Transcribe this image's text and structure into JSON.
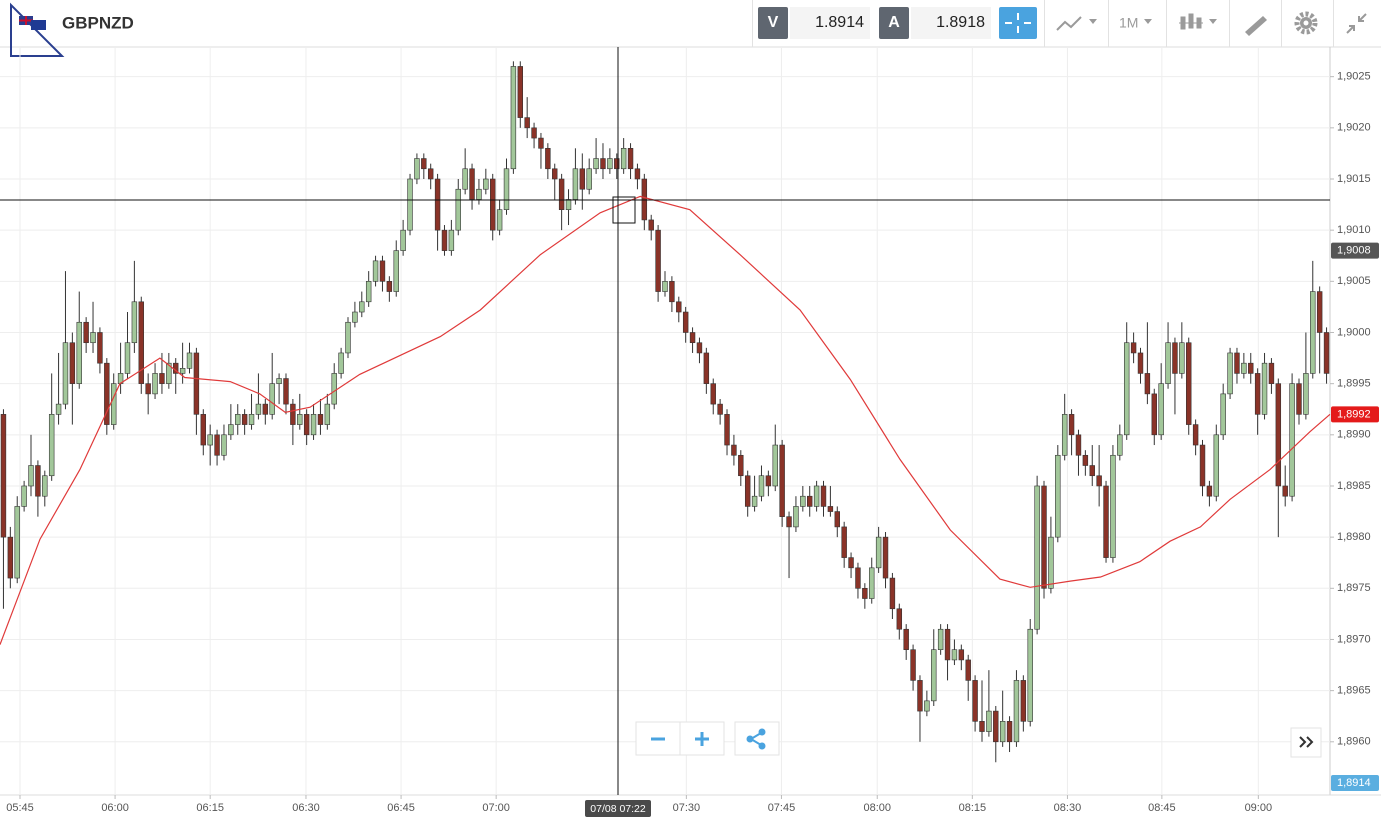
{
  "header": {
    "symbol": "GBPNZD",
    "sell_label": "V",
    "sell_price": "1.8914",
    "buy_label": "A",
    "buy_price": "1.8918",
    "timeframe": "1M",
    "crosshair_label": "07/08 07:22"
  },
  "chart_data": {
    "type": "candlestick",
    "up_color": "#a2c79a",
    "down_color": "#8a3328",
    "outline_color": "#333333",
    "xlim": [
      -0.5,
      192.5
    ],
    "ylim": [
      1.89548,
      1.90279
    ],
    "xticks": [
      {
        "value": 2.4,
        "label": "05:45"
      },
      {
        "value": 16.2,
        "label": "06:00"
      },
      {
        "value": 30.0,
        "label": "06:15"
      },
      {
        "value": 43.9,
        "label": "06:30"
      },
      {
        "value": 57.7,
        "label": "06:45"
      },
      {
        "value": 71.5,
        "label": "07:00"
      },
      {
        "value": 99.1,
        "label": "07:30"
      },
      {
        "value": 112.9,
        "label": "07:45"
      },
      {
        "value": 126.8,
        "label": "08:00"
      },
      {
        "value": 140.6,
        "label": "08:15"
      },
      {
        "value": 154.4,
        "label": "08:30"
      },
      {
        "value": 168.1,
        "label": "08:45"
      },
      {
        "value": 182.1,
        "label": "09:00"
      }
    ],
    "yticks": [
      {
        "value": 1.9025,
        "label": "1,9025"
      },
      {
        "value": 1.902,
        "label": "1,9020"
      },
      {
        "value": 1.9015,
        "label": "1,9015"
      },
      {
        "value": 1.901,
        "label": "1,9010"
      },
      {
        "value": 1.9005,
        "label": "1,9005"
      },
      {
        "value": 1.9,
        "label": "1,9000"
      },
      {
        "value": 1.8995,
        "label": "1,8995"
      },
      {
        "value": 1.899,
        "label": "1,8990"
      },
      {
        "value": 1.8985,
        "label": "1,8985"
      },
      {
        "value": 1.898,
        "label": "1,8980"
      },
      {
        "value": 1.8975,
        "label": "1,8975"
      },
      {
        "value": 1.897,
        "label": "1,8970"
      },
      {
        "value": 1.8965,
        "label": "1,8965"
      },
      {
        "value": 1.896,
        "label": "1,8960"
      }
    ],
    "grid": true,
    "price_markers": [
      {
        "value": 1.9008,
        "label": "1,9008",
        "color": "#555555"
      },
      {
        "value": 1.8992,
        "label": "1,8992",
        "color": "#e41a1a"
      },
      {
        "value": 1.8914,
        "label": "1,8914",
        "color": "#5aaee0"
      }
    ],
    "moving_average": {
      "color": "#e03a3a",
      "x": [
        -0.5,
        5.3,
        11.1,
        16.9,
        22.7,
        26.3,
        32.9,
        37.2,
        40.9,
        44.5,
        51.7,
        63.4,
        69.2,
        77.9,
        86.6,
        92.4,
        99.6,
        106.9,
        115.6,
        122.9,
        130.1,
        137.4,
        144.6,
        149,
        154.8,
        159.2,
        164.9,
        169.3,
        173.7,
        178,
        183.8,
        189.6,
        192.5
      ],
      "values": [
        1.89695,
        1.89798,
        1.89866,
        1.8995,
        1.89975,
        1.89956,
        1.89952,
        1.8994,
        1.89922,
        1.89927,
        1.89959,
        1.89996,
        1.90022,
        1.90076,
        1.90117,
        1.90133,
        1.9012,
        1.90076,
        1.90022,
        1.89954,
        1.89876,
        1.89807,
        1.89759,
        1.89751,
        1.89757,
        1.89761,
        1.89776,
        1.89796,
        1.8981,
        1.89837,
        1.89866,
        1.89903,
        1.8992
      ]
    },
    "candles": [
      [
        1.8992,
        1.89925,
        1.8973,
        1.898
      ],
      [
        1.898,
        1.8981,
        1.8975,
        1.8976
      ],
      [
        1.8976,
        1.8984,
        1.89755,
        1.8983
      ],
      [
        1.8983,
        1.89855,
        1.89825,
        1.8985
      ],
      [
        1.8985,
        1.899,
        1.8984,
        1.8987
      ],
      [
        1.8987,
        1.89875,
        1.8982,
        1.8984
      ],
      [
        1.8984,
        1.89865,
        1.8983,
        1.8986
      ],
      [
        1.8986,
        1.8996,
        1.89855,
        1.8992
      ],
      [
        1.8992,
        1.8998,
        1.8991,
        1.8993
      ],
      [
        1.8993,
        1.9006,
        1.89925,
        1.8999
      ],
      [
        1.8999,
        1.9,
        1.8991,
        1.8995
      ],
      [
        1.8995,
        1.9004,
        1.89945,
        1.9001
      ],
      [
        1.9001,
        1.90015,
        1.8998,
        1.8999
      ],
      [
        1.8999,
        1.9003,
        1.8998,
        1.9
      ],
      [
        1.9,
        1.90005,
        1.8996,
        1.8997
      ],
      [
        1.8997,
        1.89975,
        1.899,
        1.8991
      ],
      [
        1.8991,
        1.8996,
        1.89905,
        1.8995
      ],
      [
        1.8995,
        1.8999,
        1.8994,
        1.8996
      ],
      [
        1.8996,
        1.9002,
        1.89955,
        1.8999
      ],
      [
        1.8999,
        1.9007,
        1.8998,
        1.9003
      ],
      [
        1.9003,
        1.90035,
        1.8994,
        1.8995
      ],
      [
        1.8995,
        1.8996,
        1.8992,
        1.8994
      ],
      [
        1.8994,
        1.8997,
        1.89935,
        1.8996
      ],
      [
        1.8996,
        1.8998,
        1.8994,
        1.8995
      ],
      [
        1.8995,
        1.8998,
        1.89945,
        1.8997
      ],
      [
        1.8997,
        1.89975,
        1.8994,
        1.8996
      ],
      [
        1.8996,
        1.8999,
        1.8995,
        1.89965
      ],
      [
        1.89965,
        1.8999,
        1.8996,
        1.8998
      ],
      [
        1.8998,
        1.89985,
        1.899,
        1.8992
      ],
      [
        1.8992,
        1.89925,
        1.8988,
        1.8989
      ],
      [
        1.8989,
        1.8991,
        1.8987,
        1.899
      ],
      [
        1.899,
        1.89905,
        1.8987,
        1.8988
      ],
      [
        1.8988,
        1.8991,
        1.89875,
        1.899
      ],
      [
        1.899,
        1.8993,
        1.89895,
        1.8991
      ],
      [
        1.8991,
        1.8993,
        1.899,
        1.8992
      ],
      [
        1.8992,
        1.89925,
        1.899,
        1.8991
      ],
      [
        1.8991,
        1.8994,
        1.89905,
        1.8992
      ],
      [
        1.8992,
        1.8996,
        1.89915,
        1.8993
      ],
      [
        1.8993,
        1.89935,
        1.8991,
        1.8992
      ],
      [
        1.8992,
        1.8998,
        1.89915,
        1.8995
      ],
      [
        1.8995,
        1.8996,
        1.8993,
        1.89955
      ],
      [
        1.89955,
        1.8996,
        1.8992,
        1.8993
      ],
      [
        1.8993,
        1.89935,
        1.8989,
        1.8991
      ],
      [
        1.8991,
        1.8994,
        1.89905,
        1.8992
      ],
      [
        1.8992,
        1.89925,
        1.8989,
        1.899
      ],
      [
        1.899,
        1.8993,
        1.89895,
        1.8992
      ],
      [
        1.8992,
        1.89935,
        1.899,
        1.8991
      ],
      [
        1.8991,
        1.8994,
        1.89905,
        1.8993
      ],
      [
        1.8993,
        1.8997,
        1.89925,
        1.8996
      ],
      [
        1.8996,
        1.89985,
        1.89955,
        1.8998
      ],
      [
        1.8998,
        1.90015,
        1.89975,
        1.9001
      ],
      [
        1.9001,
        1.9003,
        1.90005,
        1.9002
      ],
      [
        1.9002,
        1.9004,
        1.90015,
        1.9003
      ],
      [
        1.9003,
        1.9006,
        1.90025,
        1.9005
      ],
      [
        1.9005,
        1.90075,
        1.90045,
        1.9007
      ],
      [
        1.9007,
        1.90075,
        1.9004,
        1.9005
      ],
      [
        1.9005,
        1.90055,
        1.9003,
        1.9004
      ],
      [
        1.9004,
        1.9009,
        1.90035,
        1.9008
      ],
      [
        1.9008,
        1.9011,
        1.90075,
        1.901
      ],
      [
        1.901,
        1.90155,
        1.90095,
        1.9015
      ],
      [
        1.9015,
        1.90175,
        1.90145,
        1.9017
      ],
      [
        1.9017,
        1.90175,
        1.9015,
        1.9016
      ],
      [
        1.9016,
        1.90165,
        1.9014,
        1.9015
      ],
      [
        1.9015,
        1.90155,
        1.9008,
        1.901
      ],
      [
        1.901,
        1.90105,
        1.90075,
        1.9008
      ],
      [
        1.9008,
        1.9011,
        1.90075,
        1.901
      ],
      [
        1.901,
        1.9015,
        1.90095,
        1.9014
      ],
      [
        1.9014,
        1.9018,
        1.90135,
        1.9016
      ],
      [
        1.9016,
        1.90165,
        1.9012,
        1.9013
      ],
      [
        1.9013,
        1.9015,
        1.90125,
        1.9014
      ],
      [
        1.9014,
        1.9016,
        1.90135,
        1.9015
      ],
      [
        1.9015,
        1.90155,
        1.9009,
        1.901
      ],
      [
        1.901,
        1.9013,
        1.90095,
        1.9012
      ],
      [
        1.9012,
        1.9017,
        1.90115,
        1.9016
      ],
      [
        1.9016,
        1.90265,
        1.90155,
        1.9026
      ],
      [
        1.9026,
        1.90265,
        1.902,
        1.9021
      ],
      [
        1.9021,
        1.9023,
        1.9019,
        1.902
      ],
      [
        1.902,
        1.90205,
        1.9018,
        1.9019
      ],
      [
        1.9019,
        1.90195,
        1.9016,
        1.9018
      ],
      [
        1.9018,
        1.90185,
        1.9015,
        1.9016
      ],
      [
        1.9016,
        1.90165,
        1.9013,
        1.9015
      ],
      [
        1.9015,
        1.90155,
        1.901,
        1.9012
      ],
      [
        1.9012,
        1.9014,
        1.90105,
        1.9013
      ],
      [
        1.9013,
        1.9018,
        1.90125,
        1.9016
      ],
      [
        1.9016,
        1.90175,
        1.9012,
        1.9014
      ],
      [
        1.9014,
        1.9017,
        1.90135,
        1.9016
      ],
      [
        1.9016,
        1.9019,
        1.90155,
        1.9017
      ],
      [
        1.9017,
        1.90185,
        1.9015,
        1.9016
      ],
      [
        1.9016,
        1.9018,
        1.90155,
        1.9017
      ],
      [
        1.9017,
        1.90175,
        1.9015,
        1.9016
      ],
      [
        1.9016,
        1.9019,
        1.90155,
        1.9018
      ],
      [
        1.9018,
        1.90185,
        1.9015,
        1.9016
      ],
      [
        1.9016,
        1.90165,
        1.9014,
        1.9015
      ],
      [
        1.9015,
        1.90155,
        1.901,
        1.9011
      ],
      [
        1.9011,
        1.90115,
        1.9009,
        1.901
      ],
      [
        1.901,
        1.90105,
        1.9003,
        1.9004
      ],
      [
        1.9004,
        1.9006,
        1.90035,
        1.9005
      ],
      [
        1.9005,
        1.90055,
        1.9002,
        1.9003
      ],
      [
        1.9003,
        1.90035,
        1.9001,
        1.9002
      ],
      [
        1.9002,
        1.90025,
        1.8999,
        1.9
      ],
      [
        1.9,
        1.90005,
        1.8998,
        1.8999
      ],
      [
        1.8999,
        1.89995,
        1.8997,
        1.8998
      ],
      [
        1.8998,
        1.89985,
        1.8994,
        1.8995
      ],
      [
        1.8995,
        1.89955,
        1.8992,
        1.8993
      ],
      [
        1.8993,
        1.89935,
        1.8991,
        1.8992
      ],
      [
        1.8992,
        1.89925,
        1.8988,
        1.8989
      ],
      [
        1.8989,
        1.899,
        1.8987,
        1.8988
      ],
      [
        1.8988,
        1.89885,
        1.8985,
        1.8986
      ],
      [
        1.8986,
        1.89865,
        1.8982,
        1.8983
      ],
      [
        1.8983,
        1.8986,
        1.89825,
        1.8984
      ],
      [
        1.8984,
        1.8987,
        1.89835,
        1.8986
      ],
      [
        1.8986,
        1.89865,
        1.8984,
        1.8985
      ],
      [
        1.8985,
        1.8991,
        1.89845,
        1.8989
      ],
      [
        1.8989,
        1.89895,
        1.8981,
        1.8982
      ],
      [
        1.8982,
        1.89825,
        1.8976,
        1.8981
      ],
      [
        1.8981,
        1.8984,
        1.89805,
        1.8983
      ],
      [
        1.8983,
        1.8985,
        1.89825,
        1.8984
      ],
      [
        1.8984,
        1.8985,
        1.8982,
        1.8983
      ],
      [
        1.8983,
        1.89855,
        1.89825,
        1.8985
      ],
      [
        1.8985,
        1.89855,
        1.8982,
        1.8983
      ],
      [
        1.8983,
        1.8985,
        1.8982,
        1.89825
      ],
      [
        1.89825,
        1.8983,
        1.898,
        1.8981
      ],
      [
        1.8981,
        1.89815,
        1.8977,
        1.8978
      ],
      [
        1.8978,
        1.89785,
        1.8976,
        1.8977
      ],
      [
        1.8977,
        1.89775,
        1.8974,
        1.8975
      ],
      [
        1.8975,
        1.89755,
        1.8973,
        1.8974
      ],
      [
        1.8974,
        1.8978,
        1.89735,
        1.8977
      ],
      [
        1.8977,
        1.8981,
        1.89765,
        1.898
      ],
      [
        1.898,
        1.89805,
        1.8975,
        1.8976
      ],
      [
        1.8976,
        1.89765,
        1.8972,
        1.8973
      ],
      [
        1.8973,
        1.89735,
        1.897,
        1.8971
      ],
      [
        1.8971,
        1.89715,
        1.8968,
        1.8969
      ],
      [
        1.8969,
        1.89695,
        1.8965,
        1.8966
      ],
      [
        1.8966,
        1.89665,
        1.896,
        1.8963
      ],
      [
        1.8963,
        1.8965,
        1.89625,
        1.8964
      ],
      [
        1.8964,
        1.8971,
        1.89635,
        1.8969
      ],
      [
        1.8969,
        1.89715,
        1.89685,
        1.8971
      ],
      [
        1.8971,
        1.89715,
        1.8966,
        1.8968
      ],
      [
        1.8968,
        1.897,
        1.89675,
        1.8969
      ],
      [
        1.8969,
        1.89695,
        1.8967,
        1.8968
      ],
      [
        1.8968,
        1.89685,
        1.8964,
        1.8966
      ],
      [
        1.8966,
        1.89665,
        1.8961,
        1.8962
      ],
      [
        1.8962,
        1.8966,
        1.896,
        1.8961
      ],
      [
        1.8961,
        1.8967,
        1.89605,
        1.8963
      ],
      [
        1.8963,
        1.89635,
        1.8958,
        1.896
      ],
      [
        1.896,
        1.8965,
        1.89595,
        1.8962
      ],
      [
        1.8962,
        1.89625,
        1.8959,
        1.896
      ],
      [
        1.896,
        1.8967,
        1.89595,
        1.8966
      ],
      [
        1.8966,
        1.89665,
        1.8961,
        1.8962
      ],
      [
        1.8962,
        1.8972,
        1.89615,
        1.8971
      ],
      [
        1.8971,
        1.8986,
        1.89705,
        1.8985
      ],
      [
        1.8985,
        1.89855,
        1.8974,
        1.8975
      ],
      [
        1.8975,
        1.8982,
        1.89745,
        1.898
      ],
      [
        1.898,
        1.8989,
        1.89795,
        1.8988
      ],
      [
        1.8988,
        1.8994,
        1.89875,
        1.8992
      ],
      [
        1.8992,
        1.89925,
        1.8988,
        1.899
      ],
      [
        1.899,
        1.89905,
        1.8986,
        1.8988
      ],
      [
        1.8988,
        1.89885,
        1.8986,
        1.8987
      ],
      [
        1.8987,
        1.8989,
        1.8985,
        1.8986
      ],
      [
        1.8986,
        1.8989,
        1.8983,
        1.8985
      ],
      [
        1.8985,
        1.89855,
        1.89775,
        1.8978
      ],
      [
        1.8978,
        1.8989,
        1.89775,
        1.8988
      ],
      [
        1.8988,
        1.8991,
        1.89875,
        1.899
      ],
      [
        1.899,
        1.9001,
        1.89895,
        1.8999
      ],
      [
        1.8999,
        1.9,
        1.8997,
        1.8998
      ],
      [
        1.8998,
        1.89985,
        1.8995,
        1.8996
      ],
      [
        1.8996,
        1.9001,
        1.8993,
        1.8994
      ],
      [
        1.8994,
        1.89945,
        1.8989,
        1.899
      ],
      [
        1.899,
        1.8997,
        1.89895,
        1.8995
      ],
      [
        1.8995,
        1.9001,
        1.89945,
        1.8999
      ],
      [
        1.8999,
        1.89995,
        1.8992,
        1.8996
      ],
      [
        1.8996,
        1.9001,
        1.89955,
        1.8999
      ],
      [
        1.8999,
        1.89995,
        1.899,
        1.8991
      ],
      [
        1.8991,
        1.89915,
        1.8988,
        1.8989
      ],
      [
        1.8989,
        1.89895,
        1.8984,
        1.8985
      ],
      [
        1.8985,
        1.89855,
        1.8983,
        1.8984
      ],
      [
        1.8984,
        1.8991,
        1.89835,
        1.899
      ],
      [
        1.899,
        1.8995,
        1.89895,
        1.8994
      ],
      [
        1.8994,
        1.89985,
        1.89935,
        1.8998
      ],
      [
        1.8998,
        1.89985,
        1.8995,
        1.8996
      ],
      [
        1.8996,
        1.8998,
        1.89955,
        1.8997
      ],
      [
        1.8997,
        1.8998,
        1.8995,
        1.8996
      ],
      [
        1.8996,
        1.89965,
        1.899,
        1.8992
      ],
      [
        1.8992,
        1.8998,
        1.89915,
        1.8997
      ],
      [
        1.8997,
        1.89975,
        1.8994,
        1.8995
      ],
      [
        1.8995,
        1.89955,
        1.898,
        1.8985
      ],
      [
        1.8985,
        1.8987,
        1.8983,
        1.8984
      ],
      [
        1.8984,
        1.8996,
        1.89835,
        1.8995
      ],
      [
        1.8995,
        1.89955,
        1.8991,
        1.8992
      ],
      [
        1.8992,
        1.9,
        1.89915,
        1.8996
      ],
      [
        1.8996,
        1.9007,
        1.89955,
        1.9004
      ],
      [
        1.9004,
        1.90045,
        1.8996,
        1.9
      ],
      [
        1.9,
        1.90005,
        1.8995,
        1.8996
      ]
    ]
  }
}
